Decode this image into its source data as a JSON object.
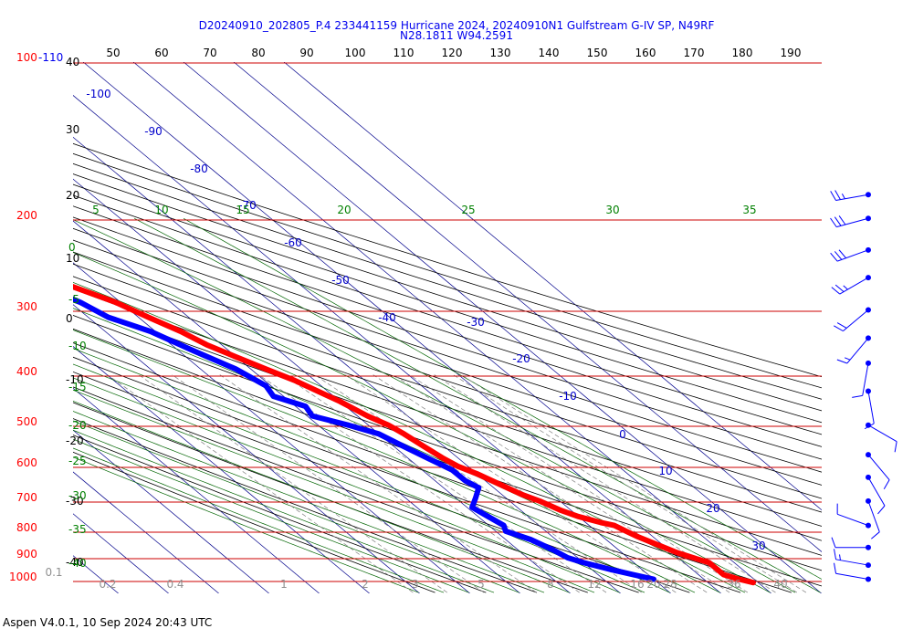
{
  "title_line1": "D20240910_202805_P.4 233441159 Hurricane 2024, 20240910N1 Gulfstream G-IV SP, N49RF",
  "title_line2": "N28.1811 W94.2591",
  "footer": "Aspen V4.0.1, 10 Sep 2024  20:43 UTC",
  "colors": {
    "temperature": "#ff0000",
    "dewpoint": "#0000ff",
    "isobar": "#cc0000",
    "isotherm": "#00008b",
    "dry_adiabat": "#000000",
    "moist_adiabat": "#006400",
    "mixing_ratio": "#808080",
    "axis_pressure": "#ff0000",
    "label_green": "#008000"
  },
  "chart_data": {
    "type": "skew-t",
    "pressure_levels": [
      100,
      200,
      300,
      400,
      500,
      600,
      700,
      800,
      900,
      1000
    ],
    "pressure_labels": [
      "100",
      "200",
      "300",
      "400",
      "500",
      "600",
      "700",
      "800",
      "900",
      "1000"
    ],
    "pressure_unit_label": "-110",
    "top_axis_labels": [
      "50",
      "60",
      "70",
      "80",
      "90",
      "100",
      "110",
      "120",
      "130",
      "140",
      "150",
      "160",
      "170",
      "180",
      "190"
    ],
    "left_black_labels": [
      "40",
      "30",
      "20",
      "10",
      "0",
      "-10",
      "-20",
      "-30",
      "-40"
    ],
    "left_green_labels": [
      "0",
      "-5",
      "-10",
      "-15",
      "-20",
      "-25",
      "-30",
      "-35",
      "-40"
    ],
    "isotherm_labels": [
      "-100",
      "-90",
      "-80",
      "-70",
      "-60",
      "-50",
      "-40",
      "-30",
      "-20",
      "-10",
      "0",
      "10",
      "20",
      "30"
    ],
    "moist_labels": [
      "5",
      "10",
      "15",
      "20",
      "25",
      "30",
      "35"
    ],
    "mixing_ratio_labels": [
      "0.1",
      "0.2",
      "0.4",
      "1",
      "2",
      "3",
      "5",
      "8",
      "12",
      "16",
      "20",
      "28",
      "36",
      "40"
    ],
    "temperature_series": {
      "name": "Temperature",
      "points": [
        [
          200,
          -48
        ],
        [
          210,
          -46
        ],
        [
          230,
          -43
        ],
        [
          250,
          -39
        ],
        [
          270,
          -36
        ],
        [
          290,
          -31
        ],
        [
          310,
          -28
        ],
        [
          330,
          -25
        ],
        [
          350,
          -23
        ],
        [
          370,
          -20
        ],
        [
          390,
          -17
        ],
        [
          410,
          -14
        ],
        [
          430,
          -12
        ],
        [
          450,
          -10
        ],
        [
          480,
          -8
        ],
        [
          500,
          -6
        ],
        [
          520,
          -5
        ],
        [
          550,
          -4
        ],
        [
          580,
          -3
        ],
        [
          600,
          -2
        ],
        [
          620,
          0
        ],
        [
          650,
          2
        ],
        [
          680,
          4
        ],
        [
          700,
          6
        ],
        [
          730,
          8
        ],
        [
          750,
          10
        ],
        [
          770,
          13
        ],
        [
          780,
          15
        ],
        [
          800,
          16
        ],
        [
          820,
          17
        ],
        [
          850,
          19
        ],
        [
          880,
          21
        ],
        [
          900,
          23
        ],
        [
          920,
          25
        ],
        [
          950,
          25
        ],
        [
          970,
          25
        ],
        [
          990,
          27
        ],
        [
          1005,
          29
        ]
      ]
    },
    "dewpoint_series": {
      "name": "Dewpoint",
      "points": [
        [
          215,
          -62
        ],
        [
          230,
          -61
        ],
        [
          240,
          -52
        ],
        [
          250,
          -48
        ],
        [
          260,
          -47
        ],
        [
          270,
          -42
        ],
        [
          290,
          -38
        ],
        [
          310,
          -36
        ],
        [
          330,
          -31
        ],
        [
          360,
          -27
        ],
        [
          390,
          -23
        ],
        [
          420,
          -21
        ],
        [
          440,
          -22
        ],
        [
          460,
          -18
        ],
        [
          480,
          -19
        ],
        [
          500,
          -14
        ],
        [
          520,
          -10
        ],
        [
          550,
          -8
        ],
        [
          580,
          -6
        ],
        [
          610,
          -4
        ],
        [
          640,
          -4
        ],
        [
          660,
          -3
        ],
        [
          690,
          -6
        ],
        [
          720,
          -9
        ],
        [
          750,
          -8
        ],
        [
          780,
          -7
        ],
        [
          800,
          -8
        ],
        [
          830,
          -5
        ],
        [
          870,
          -3
        ],
        [
          900,
          -2
        ],
        [
          920,
          0
        ],
        [
          950,
          4
        ],
        [
          970,
          7
        ],
        [
          990,
          10
        ]
      ]
    },
    "wind_barbs": [
      {
        "p": 180,
        "dir": 260,
        "speed": 25
      },
      {
        "p": 200,
        "dir": 255,
        "speed": 30
      },
      {
        "p": 230,
        "dir": 250,
        "speed": 30
      },
      {
        "p": 260,
        "dir": 240,
        "speed": 25
      },
      {
        "p": 300,
        "dir": 230,
        "speed": 20
      },
      {
        "p": 340,
        "dir": 220,
        "speed": 15
      },
      {
        "p": 380,
        "dir": 190,
        "speed": 10
      },
      {
        "p": 430,
        "dir": 170,
        "speed": 10
      },
      {
        "p": 500,
        "dir": 120,
        "speed": 10
      },
      {
        "p": 570,
        "dir": 140,
        "speed": 10
      },
      {
        "p": 630,
        "dir": 150,
        "speed": 10
      },
      {
        "p": 700,
        "dir": 160,
        "speed": 10
      },
      {
        "p": 780,
        "dir": 290,
        "speed": 10
      },
      {
        "p": 860,
        "dir": 270,
        "speed": 10
      },
      {
        "p": 930,
        "dir": 280,
        "speed": 15
      },
      {
        "p": 990,
        "dir": 280,
        "speed": 10
      }
    ]
  }
}
